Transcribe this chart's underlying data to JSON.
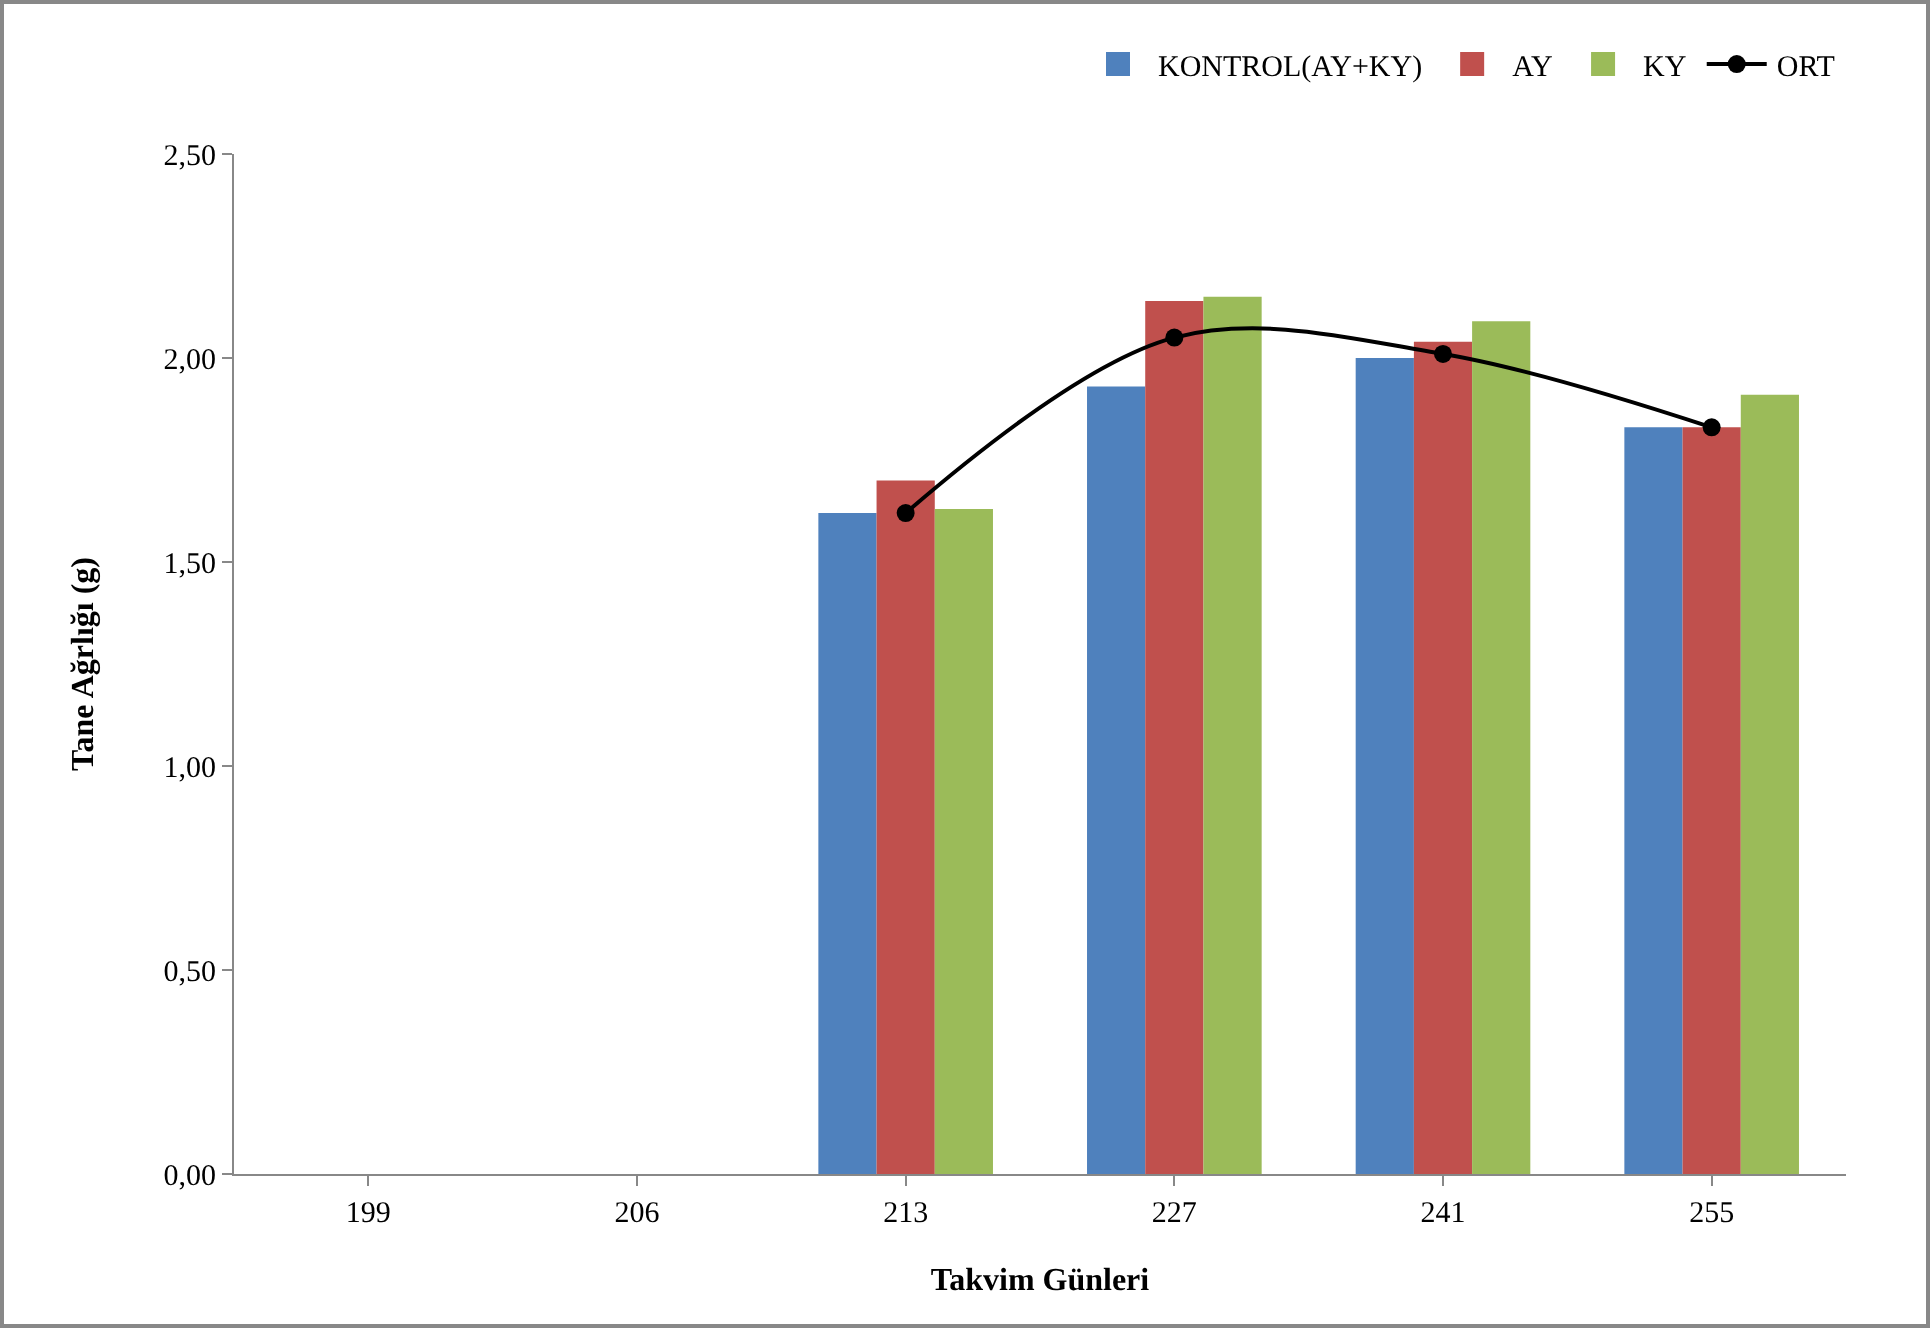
{
  "chart_data": {
    "type": "bar",
    "xlabel": "Takvim Günleri",
    "ylabel": "Tane Ağrlığı (g)",
    "categories": [
      "199",
      "206",
      "213",
      "227",
      "241",
      "255"
    ],
    "series": [
      {
        "name": "KONTROL(AY+KY)",
        "color": "#4f81bd",
        "values": [
          null,
          null,
          1.62,
          1.93,
          2.0,
          1.83
        ]
      },
      {
        "name": "AY",
        "color": "#c0504d",
        "values": [
          null,
          null,
          1.7,
          2.14,
          2.04,
          1.83
        ]
      },
      {
        "name": "KY",
        "color": "#9bbb59",
        "values": [
          null,
          null,
          1.63,
          2.15,
          2.09,
          1.91
        ]
      },
      {
        "name": "ORT",
        "type": "line",
        "color": "#000000",
        "marker": "circle",
        "values": [
          null,
          null,
          1.62,
          2.05,
          2.01,
          1.83
        ]
      }
    ],
    "ylim": [
      0,
      2.5
    ],
    "yticks": [
      {
        "value": 0,
        "label": "0,00"
      },
      {
        "value": 0.5,
        "label": "0,50"
      },
      {
        "value": 1,
        "label": "1,00"
      },
      {
        "value": 1.5,
        "label": "1,50"
      },
      {
        "value": 2,
        "label": "2,00"
      },
      {
        "value": 2.5,
        "label": "2,50"
      }
    ],
    "grid": false,
    "legend": "top right"
  }
}
